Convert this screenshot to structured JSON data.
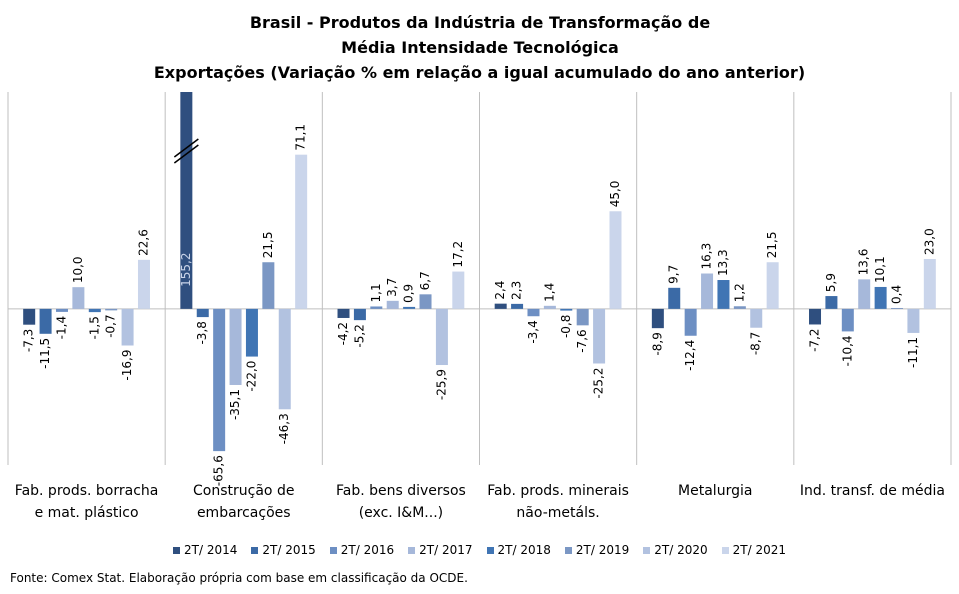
{
  "chart_data": {
    "type": "bar",
    "title": "Brasil - Produtos da Indústria de Transformação de Média Intensidade Tecnológica",
    "subtitle": "Exportações (Variação % em relação a igual acumulado do ano anterior)",
    "categories": [
      "Fab. prods. borracha e mat. plástico",
      "Construção de embarcações",
      "Fab. bens diversos (exc. I&M...)",
      "Fab. prods. minerais não-metáls.",
      "Metalurgia",
      "Ind. transf. de média"
    ],
    "series": [
      {
        "name": "2T/ 2014",
        "color": "#2f4f7f",
        "values": [
          -7.3,
          155.2,
          -4.2,
          2.4,
          -8.9,
          -7.2
        ],
        "value_labels": [
          "-7,3",
          "155,2",
          "-4,2",
          "2,4",
          "-8,9",
          "-7,2"
        ]
      },
      {
        "name": "2T/ 2015",
        "color": "#3b6aa6",
        "values": [
          -11.5,
          -3.8,
          -5.2,
          2.3,
          9.7,
          5.9
        ],
        "value_labels": [
          "-11,5",
          "-3,8",
          "-5,2",
          "2,3",
          "9,7",
          "5,9"
        ]
      },
      {
        "name": "2T/ 2016",
        "color": "#6d8fc3",
        "values": [
          -1.4,
          -65.6,
          1.1,
          -3.4,
          -12.4,
          -10.4
        ],
        "value_labels": [
          "-1,4",
          "-65,6",
          "1,1",
          "-3,4",
          "-12,4",
          "-10,4"
        ]
      },
      {
        "name": "2T/ 2017",
        "color": "#a6b8da",
        "values": [
          10.0,
          -35.1,
          3.7,
          1.4,
          16.3,
          13.6
        ],
        "value_labels": [
          "10,0",
          "-35,1",
          "3,7",
          "1,4",
          "16,3",
          "13,6"
        ]
      },
      {
        "name": "2T/ 2018",
        "color": "#4075b4",
        "values": [
          -1.5,
          -22.0,
          0.9,
          -0.8,
          13.3,
          10.1
        ],
        "value_labels": [
          "-1,5",
          "-22,0",
          "0,9",
          "-0,8",
          "13,3",
          "10,1"
        ]
      },
      {
        "name": "2T/ 2019",
        "color": "#7b97c4",
        "values": [
          -0.7,
          21.5,
          6.7,
          -7.6,
          1.2,
          0.4
        ],
        "value_labels": [
          "-0,7",
          "21,5",
          "6,7",
          "-7,6",
          "1,2",
          "0,4"
        ]
      },
      {
        "name": "2T/ 2020",
        "color": "#b2c2e0",
        "values": [
          -16.9,
          -46.3,
          -25.9,
          -25.2,
          -8.7,
          -11.1
        ],
        "value_labels": [
          "-16,9",
          "-46,3",
          "-25,9",
          "-25,2",
          "-8,7",
          "-11,1"
        ]
      },
      {
        "name": "2T/ 2021",
        "color": "#cad5eb",
        "values": [
          22.6,
          71.1,
          17.2,
          45.0,
          21.5,
          23.0
        ],
        "value_labels": [
          "22,6",
          "71,1",
          "17,2",
          "45,0",
          "21,5",
          "23,0"
        ]
      }
    ],
    "ylim": [
      -72,
      100
    ],
    "legend": "bottom",
    "source": "Fonte: Comex Stat. Elaboração própria com base em classificação da OCDE."
  }
}
